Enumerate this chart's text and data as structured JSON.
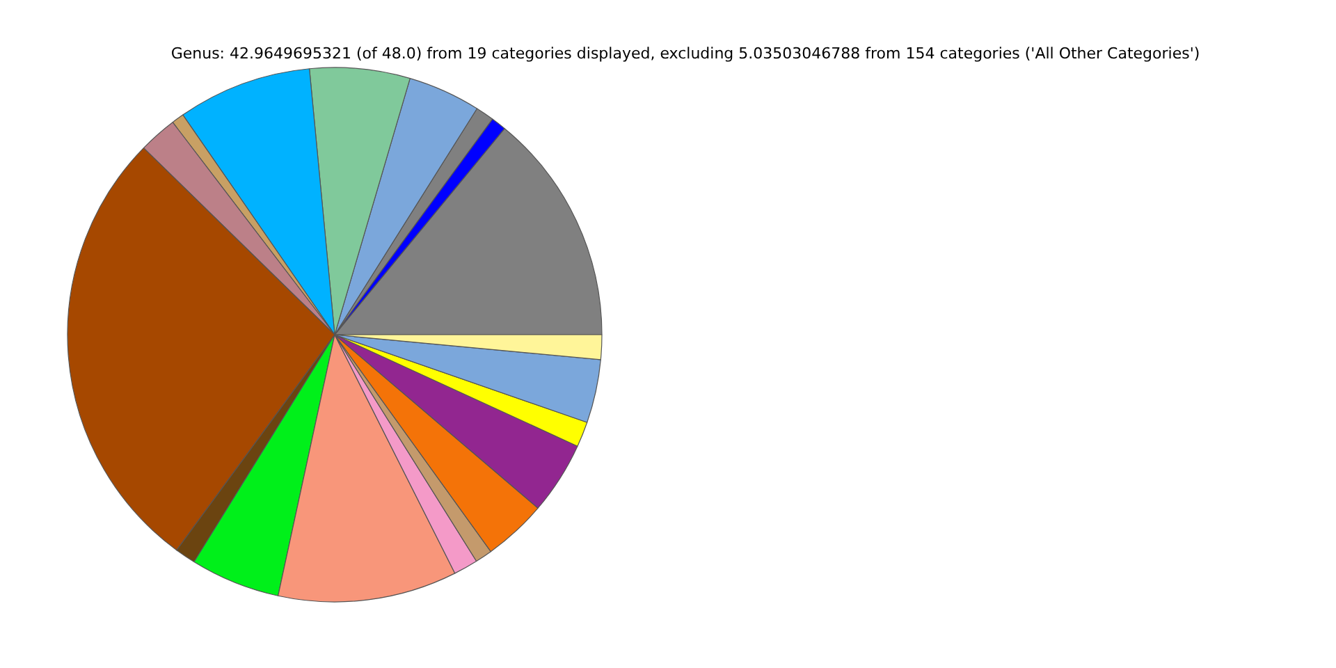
{
  "chart_data": {
    "type": "pie",
    "title": "Genus: 42.9649695321 (of 48.0) from 19 categories displayed, excluding 5.03503046788 from 154 categories ('All Other Categories')",
    "categories": [
      null,
      null,
      null,
      null,
      null,
      null,
      null,
      null,
      null,
      null,
      null,
      null,
      null,
      null,
      null,
      null,
      null,
      null,
      null
    ],
    "values": [
      14.03,
      0.92,
      1.11,
      4.39,
      6.06,
      8.11,
      0.75,
      2.31,
      27.25,
      1.25,
      5.42,
      10.83,
      1.47,
      1.03,
      3.83,
      4.39,
      1.53,
      3.83,
      1.49
    ],
    "colors": [
      "#808080",
      "#0000ff",
      "#808080",
      "#7ba7db",
      "#80c99b",
      "#00b2ff",
      "#c8a064",
      "#bc8088",
      "#a64800",
      "#6b4410",
      "#00f01a",
      "#f8967a",
      "#f49ac8",
      "#c49a6c",
      "#f47308",
      "#922690",
      "#ffff00",
      "#7ba7db",
      "#fff599"
    ]
  }
}
